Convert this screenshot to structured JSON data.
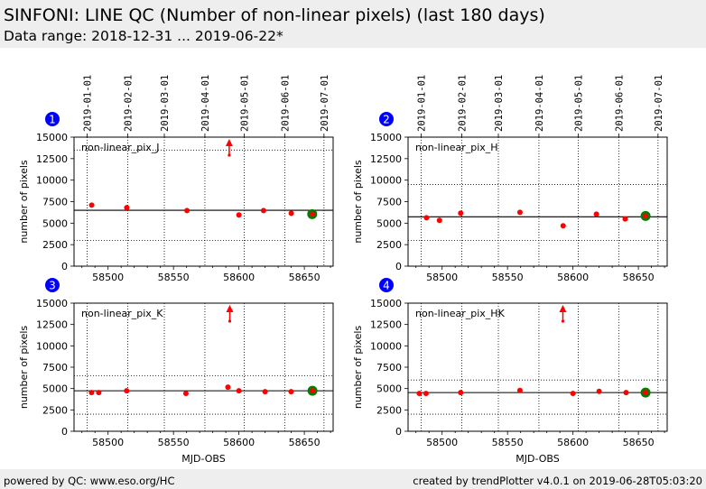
{
  "header": {
    "title": "SINFONI: LINE QC (Number of non-linear pixels) (last 180 days)",
    "subtitle": "Data range: 2018-12-31 ... 2019-06-22*"
  },
  "footer": {
    "left": "powered by QC: www.eso.org/HC",
    "right": "created by trendPlotter v4.0.1 on 2019-06-28T05:03:20"
  },
  "colors": {
    "point": "#ff0000",
    "latest_point_ring": "#008000",
    "badge": "#0000ff",
    "line": "#000000"
  },
  "chart_data": [
    {
      "type": "scatter",
      "panel_number": "1",
      "label": "non-linear_pix_J",
      "xlabel": "",
      "ylabel": "number of pixels",
      "xlim": [
        58474,
        58672
      ],
      "ylim": [
        0,
        15000
      ],
      "x_ticks": [
        58500,
        58550,
        58600,
        58650
      ],
      "y_ticks": [
        0,
        2500,
        5000,
        7500,
        10000,
        12500,
        15000
      ],
      "date_ticks": [
        {
          "label": "2019-01-01",
          "mjd": 58484
        },
        {
          "label": "2019-02-01",
          "mjd": 58515
        },
        {
          "label": "2019-03-01",
          "mjd": 58543
        },
        {
          "label": "2019-04-01",
          "mjd": 58574
        },
        {
          "label": "2019-05-01",
          "mjd": 58604
        },
        {
          "label": "2019-06-01",
          "mjd": 58635
        },
        {
          "label": "2019-07-01",
          "mjd": 58665
        }
      ],
      "mean": 6500,
      "upper_limit": 13500,
      "lower_limit": 3000,
      "points": [
        {
          "x": 58487.5,
          "y": 7100
        },
        {
          "x": 58514.3,
          "y": 6800
        },
        {
          "x": 58560.3,
          "y": 6470
        },
        {
          "x": 58600.0,
          "y": 5950
        },
        {
          "x": 58618.8,
          "y": 6470
        },
        {
          "x": 58640.0,
          "y": 6150
        }
      ],
      "latest_point": {
        "x": 58656.0,
        "y": 6050
      },
      "outliers_above": [
        {
          "x": 58592.6
        }
      ]
    },
    {
      "type": "scatter",
      "panel_number": "2",
      "label": "non-linear_pix_H",
      "xlabel": "",
      "ylabel": "number of pixels",
      "xlim": [
        58474,
        58672
      ],
      "ylim": [
        0,
        15000
      ],
      "x_ticks": [
        58500,
        58550,
        58600,
        58650
      ],
      "y_ticks": [
        0,
        2500,
        5000,
        7500,
        10000,
        12500,
        15000
      ],
      "date_ticks": [
        {
          "label": "2019-01-01",
          "mjd": 58484
        },
        {
          "label": "2019-02-01",
          "mjd": 58515
        },
        {
          "label": "2019-03-01",
          "mjd": 58543
        },
        {
          "label": "2019-04-01",
          "mjd": 58574
        },
        {
          "label": "2019-05-01",
          "mjd": 58604
        },
        {
          "label": "2019-06-01",
          "mjd": 58635
        },
        {
          "label": "2019-07-01",
          "mjd": 58665
        }
      ],
      "mean": 5740,
      "upper_limit": 9500,
      "lower_limit": 3000,
      "points": [
        {
          "x": 58488.1,
          "y": 5630
        },
        {
          "x": 58498.0,
          "y": 5320
        },
        {
          "x": 58514.2,
          "y": 6160
        },
        {
          "x": 58559.5,
          "y": 6260
        },
        {
          "x": 58592.5,
          "y": 4690
        },
        {
          "x": 58617.9,
          "y": 6050
        },
        {
          "x": 58639.9,
          "y": 5490
        }
      ],
      "latest_point": {
        "x": 58655.5,
        "y": 5840
      },
      "outliers_above": []
    },
    {
      "type": "scatter",
      "panel_number": "3",
      "label": "non-linear_pix_K",
      "xlabel": "MJD-OBS",
      "ylabel": "number of pixels",
      "xlim": [
        58474,
        58672
      ],
      "ylim": [
        0,
        15000
      ],
      "x_ticks": [
        58500,
        58550,
        58600,
        58650
      ],
      "y_ticks": [
        0,
        2500,
        5000,
        7500,
        10000,
        12500,
        15000
      ],
      "date_ticks": [],
      "mean": 4740,
      "upper_limit": 6500,
      "lower_limit": 2000,
      "points": [
        {
          "x": 58487.4,
          "y": 4530
        },
        {
          "x": 58492.9,
          "y": 4530
        },
        {
          "x": 58514.2,
          "y": 4740
        },
        {
          "x": 58559.5,
          "y": 4430
        },
        {
          "x": 58591.6,
          "y": 5160
        },
        {
          "x": 58600.0,
          "y": 4740
        },
        {
          "x": 58620.0,
          "y": 4640
        },
        {
          "x": 58639.9,
          "y": 4640
        }
      ],
      "latest_point": {
        "x": 58656.2,
        "y": 4740
      },
      "outliers_above": [
        {
          "x": 58593.0
        }
      ]
    },
    {
      "type": "scatter",
      "panel_number": "4",
      "label": "non-linear_pix_HK",
      "xlabel": "MJD-OBS",
      "ylabel": "number of pixels",
      "xlim": [
        58474,
        58672
      ],
      "ylim": [
        0,
        15000
      ],
      "x_ticks": [
        58500,
        58550,
        58600,
        58650
      ],
      "y_ticks": [
        0,
        2500,
        5000,
        7500,
        10000,
        12500,
        15000
      ],
      "date_ticks": [],
      "mean": 4530,
      "upper_limit": 6000,
      "lower_limit": 2000,
      "points": [
        {
          "x": 58482.6,
          "y": 4430
        },
        {
          "x": 58487.7,
          "y": 4430
        },
        {
          "x": 58514.2,
          "y": 4530
        },
        {
          "x": 58559.5,
          "y": 4780
        },
        {
          "x": 58600.0,
          "y": 4430
        },
        {
          "x": 58620.0,
          "y": 4670
        },
        {
          "x": 58640.6,
          "y": 4530
        }
      ],
      "latest_point": {
        "x": 58655.5,
        "y": 4530
      },
      "outliers_above": [
        {
          "x": 58592.3
        }
      ]
    }
  ]
}
